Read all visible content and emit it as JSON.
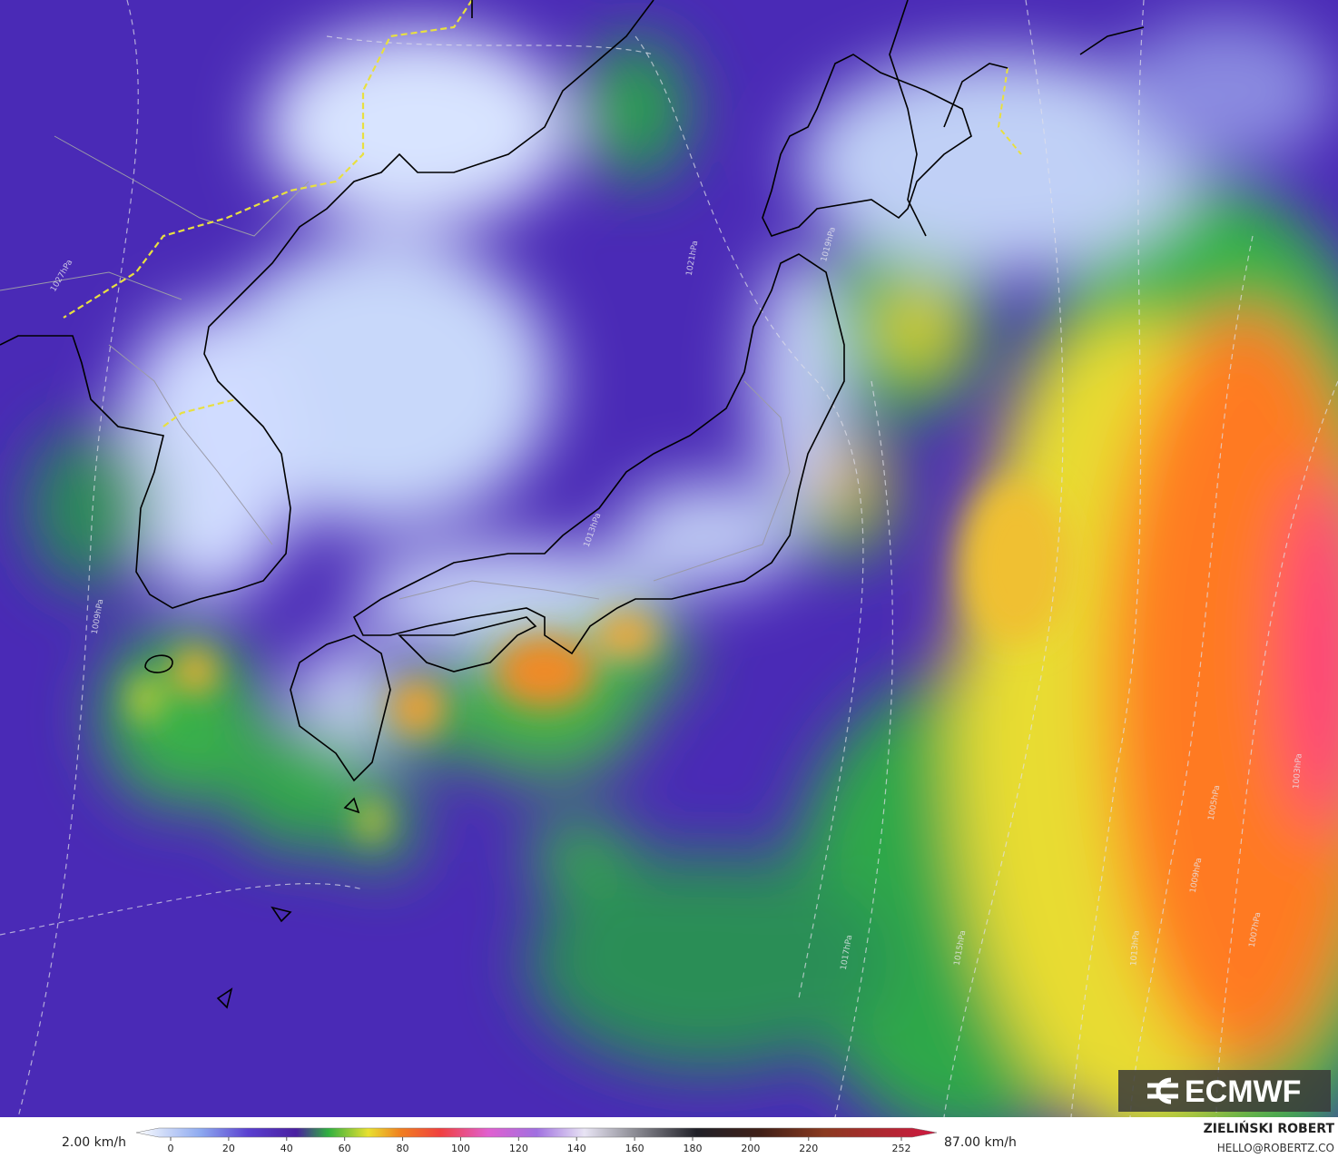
{
  "map": {
    "logo": "ECMWF",
    "contour_labels": [
      "1027hPa",
      "1021hPa",
      "1019hPa",
      "1013hPa",
      "1009hPa",
      "1017hPa",
      "1015hPa",
      "1013hPa",
      "1009hPa",
      "1007hPa",
      "1005hPa",
      "1003hPa"
    ]
  },
  "colorbar": {
    "min_label": "2.00 km/h",
    "max_label": "87.00 km/h",
    "ticks": [
      0,
      20,
      40,
      60,
      80,
      100,
      120,
      140,
      160,
      180,
      200,
      220,
      252
    ]
  },
  "credits": {
    "author": "ZIELIŃSKI ROBERT",
    "contact": "HELLO@ROBERTZ.CO"
  }
}
